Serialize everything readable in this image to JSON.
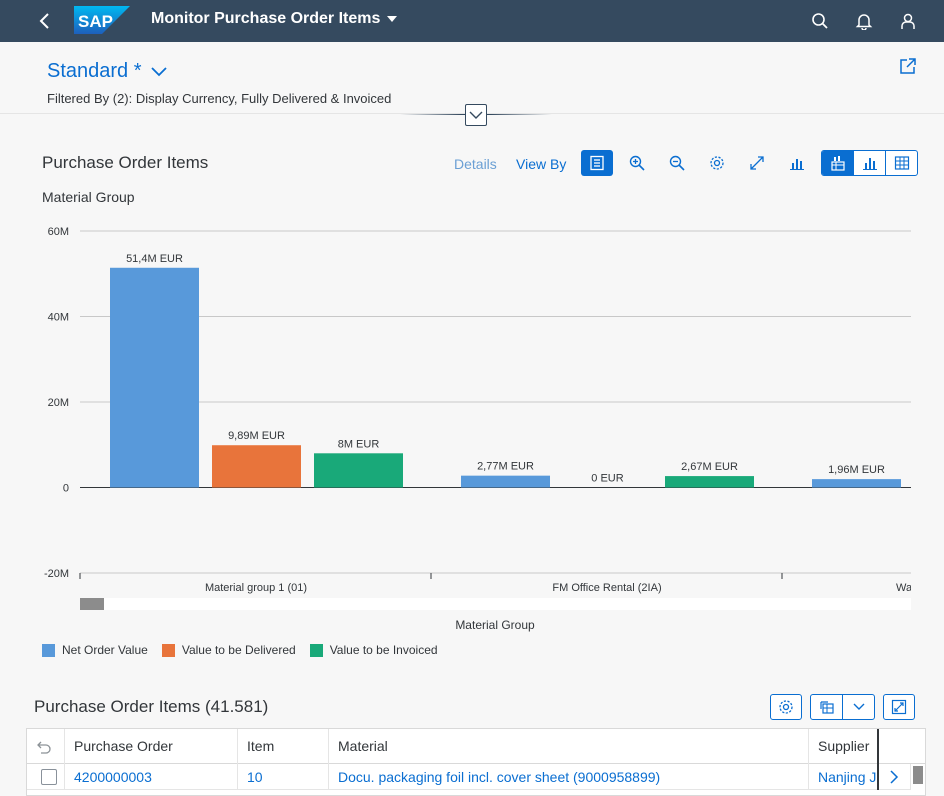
{
  "shell": {
    "title": "Monitor Purchase Order Items",
    "logo_text": "SAP",
    "icons": [
      "back-icon",
      "search-icon",
      "bell-icon",
      "user-icon"
    ]
  },
  "header": {
    "variant": "Standard *",
    "filtered_by": "Filtered By (2): Display Currency, Fully Delivered & Invoiced"
  },
  "chart_panel": {
    "title": "Purchase Order Items",
    "details_label": "Details",
    "view_by_label": "View By",
    "dimension_label": "Material Group"
  },
  "chart_data": {
    "type": "bar",
    "xlabel": "Material Group",
    "ylabel": "",
    "ylim": [
      -20000000,
      60000000
    ],
    "y_ticks": [
      "-20M",
      "0",
      "20M",
      "40M",
      "60M"
    ],
    "categories": [
      "Material group 1 (01)",
      "FM Office Rental (2IA)",
      "Wa"
    ],
    "series": [
      {
        "name": "Net Order Value",
        "color": "#5899da",
        "values": [
          51400000,
          2770000,
          1960000
        ],
        "labels": [
          "51,4M EUR",
          "2,77M EUR",
          "1,96M EUR"
        ]
      },
      {
        "name": "Value to be Delivered",
        "color": "#e8743b",
        "values": [
          9890000,
          0,
          null
        ],
        "labels": [
          "9,89M EUR",
          "0 EUR",
          ""
        ]
      },
      {
        "name": "Value to be Invoiced",
        "color": "#19a979",
        "values": [
          8000000,
          2670000,
          null
        ],
        "labels": [
          "8M EUR",
          "2,67M EUR",
          ""
        ]
      }
    ],
    "legend_position": "bottom-left",
    "grid": true
  },
  "table": {
    "title": "Purchase Order Items (41.581)",
    "columns": [
      "Purchase Order",
      "Item",
      "Material",
      "Supplier"
    ],
    "rows": [
      {
        "purchase_order": "4200000003",
        "item": "10",
        "material": "Docu. packaging foil incl. cover sheet (9000958899)",
        "supplier": "Nanjing Ji"
      }
    ]
  }
}
